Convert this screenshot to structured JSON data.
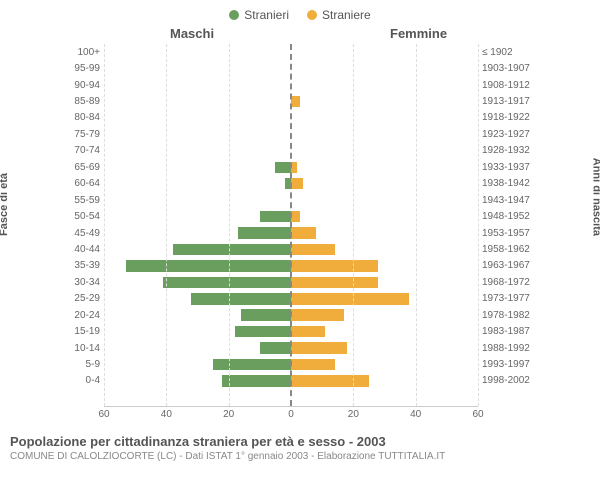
{
  "legend": {
    "male": {
      "label": "Stranieri",
      "color": "#6a9e5f"
    },
    "female": {
      "label": "Straniere",
      "color": "#f0ad3b"
    }
  },
  "column_titles": {
    "male": "Maschi",
    "female": "Femmine"
  },
  "y_left_title": "Fasce di età",
  "y_right_title": "Anni di nascita",
  "footer": {
    "title": "Popolazione per cittadinanza straniera per età e sesso - 2003",
    "subtitle": "COMUNE DI CALOLZIOCORTE (LC) - Dati ISTAT 1° gennaio 2003 - Elaborazione TUTTITALIA.IT"
  },
  "chart": {
    "type": "population-pyramid",
    "x_max": 60,
    "x_ticks_left": [
      60,
      40,
      20,
      0
    ],
    "x_ticks_right": [
      0,
      20,
      40,
      60
    ],
    "background_color": "#ffffff",
    "grid_color": "#dddddd",
    "center_line_color": "#888888",
    "text_color": "#666666",
    "rows": [
      {
        "age": "100+",
        "birth": "≤ 1902",
        "m": 0,
        "f": 0
      },
      {
        "age": "95-99",
        "birth": "1903-1907",
        "m": 0,
        "f": 0
      },
      {
        "age": "90-94",
        "birth": "1908-1912",
        "m": 0,
        "f": 0
      },
      {
        "age": "85-89",
        "birth": "1913-1917",
        "m": 0,
        "f": 3
      },
      {
        "age": "80-84",
        "birth": "1918-1922",
        "m": 0,
        "f": 0
      },
      {
        "age": "75-79",
        "birth": "1923-1927",
        "m": 0,
        "f": 0
      },
      {
        "age": "70-74",
        "birth": "1928-1932",
        "m": 0,
        "f": 0
      },
      {
        "age": "65-69",
        "birth": "1933-1937",
        "m": 5,
        "f": 2
      },
      {
        "age": "60-64",
        "birth": "1938-1942",
        "m": 2,
        "f": 4
      },
      {
        "age": "55-59",
        "birth": "1943-1947",
        "m": 0,
        "f": 0
      },
      {
        "age": "50-54",
        "birth": "1948-1952",
        "m": 10,
        "f": 3
      },
      {
        "age": "45-49",
        "birth": "1953-1957",
        "m": 17,
        "f": 8
      },
      {
        "age": "40-44",
        "birth": "1958-1962",
        "m": 38,
        "f": 14
      },
      {
        "age": "35-39",
        "birth": "1963-1967",
        "m": 53,
        "f": 28
      },
      {
        "age": "30-34",
        "birth": "1968-1972",
        "m": 41,
        "f": 28
      },
      {
        "age": "25-29",
        "birth": "1973-1977",
        "m": 32,
        "f": 38
      },
      {
        "age": "20-24",
        "birth": "1978-1982",
        "m": 16,
        "f": 17
      },
      {
        "age": "15-19",
        "birth": "1983-1987",
        "m": 18,
        "f": 11
      },
      {
        "age": "10-14",
        "birth": "1988-1992",
        "m": 10,
        "f": 18
      },
      {
        "age": "5-9",
        "birth": "1993-1997",
        "m": 25,
        "f": 14
      },
      {
        "age": "0-4",
        "birth": "1998-2002",
        "m": 22,
        "f": 25
      }
    ]
  }
}
